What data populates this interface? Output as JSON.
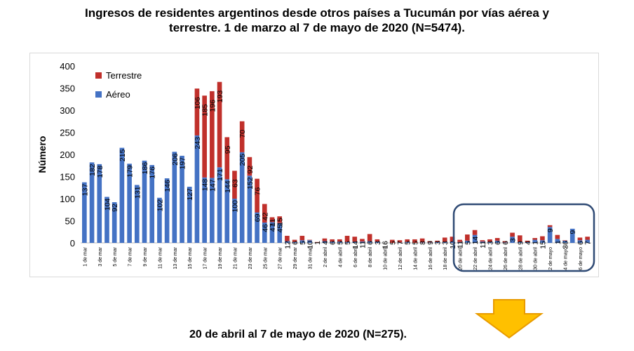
{
  "title_line1": "Ingresos de residentes argentinos desde otros países a Tucumán por vías aérea y",
  "title_line2": "terrestre. 1 de marzo al 7 de mayo de 2020 (N=5474).",
  "footer_note": "20 de abril al 7 de mayo de 2020 (N=275).",
  "colors": {
    "aereo": "#4472C4",
    "terrestre": "#C0302B",
    "highlight": "#2F4A74",
    "arrow_fill": "#FFC000",
    "arrow_stroke": "#E89B00"
  },
  "chart_data": {
    "type": "bar",
    "stacked": true,
    "ylabel": "Número",
    "ylim": [
      0,
      400
    ],
    "yticks": [
      0,
      50,
      100,
      150,
      200,
      250,
      300,
      350,
      400
    ],
    "legend": [
      "Terrestre",
      "Aéreo"
    ],
    "legend_position": "top-left",
    "x_tick_labels": [
      "1 de mar",
      "3 de mar",
      "5 de mar",
      "7 de mar",
      "9 de mar",
      "11 de mar",
      "13 de mar",
      "15 de mar",
      "17 de mar",
      "19 de mar",
      "21 de mar",
      "23 de mar",
      "25 de mar",
      "27 de mar",
      "29 de mar",
      "31 de mar",
      "2 de abril",
      "4 de abril",
      "6 de abril",
      "8 de abril",
      "10 de abril",
      "12 de abril",
      "14 de abril",
      "16 de abril",
      "18 de abril",
      "20 de abril",
      "22 de abril",
      "24 de abril",
      "26 de abril",
      "28 de abril",
      "30 de abril",
      "2 de mayo",
      "4 de mayo",
      "6 de mayo"
    ],
    "series": [
      {
        "name": "Aéreo",
        "values": [
          137,
          182,
          178,
          104,
          92,
          215,
          179,
          131,
          186,
          176,
          102,
          146,
          206,
          197,
          127,
          243,
          148,
          147,
          171,
          144,
          100,
          205,
          152,
          69,
          46,
          47,
          45,
          4,
          2,
          6,
          6,
          1,
          4,
          3,
          3,
          2,
          3,
          3,
          4,
          3,
          0,
          0,
          1,
          2,
          0,
          1,
          1,
          2,
          2,
          3,
          2,
          5,
          18,
          3,
          2,
          5,
          1,
          14,
          2,
          2,
          7,
          6,
          36,
          9,
          5,
          32,
          6,
          7
        ]
      },
      {
        "name": "Terrestre",
        "values": [
          0,
          0,
          0,
          0,
          0,
          0,
          0,
          0,
          0,
          0,
          0,
          0,
          0,
          0,
          0,
          106,
          185,
          196,
          193,
          95,
          63,
          70,
          42,
          76,
          42,
          11,
          15,
          12,
          5,
          10,
          1,
          1,
          6,
          5,
          5,
          14,
          11,
          6,
          16,
          5,
          0,
          7,
          5,
          6,
          8,
          9,
          3,
          3,
          10,
          11,
          5,
          14,
          11,
          3,
          6,
          6,
          3,
          9,
          15,
          3,
          4,
          9,
          4,
          9,
          1,
          0,
          6,
          7
        ]
      }
    ],
    "value_labels": [
      "137",
      "182",
      "178",
      "104",
      "92",
      "215",
      "179",
      "131",
      "186",
      "176",
      "102",
      "146",
      "206",
      "197",
      "127",
      "243",
      "148",
      "147",
      "171",
      "144",
      "100",
      "205",
      "152",
      "69",
      "46",
      "47",
      "45",
      "12",
      "6",
      "5",
      "10",
      "1",
      "4",
      "6",
      "5",
      "5",
      "14",
      "11",
      "6",
      "3",
      "16",
      "5",
      "7",
      "5",
      "5",
      "8",
      "9",
      "3",
      "3",
      "10",
      "11",
      "5",
      "14",
      "11",
      "3",
      "6",
      "6",
      "3",
      "9",
      "4",
      "1",
      "15",
      "9",
      "1",
      "36",
      "9",
      "6",
      "7"
    ],
    "value_labels_top": [
      "106",
      "185",
      "196",
      "193",
      "95",
      "63",
      "70",
      "92",
      "76",
      "42",
      "11",
      "15"
    ]
  }
}
